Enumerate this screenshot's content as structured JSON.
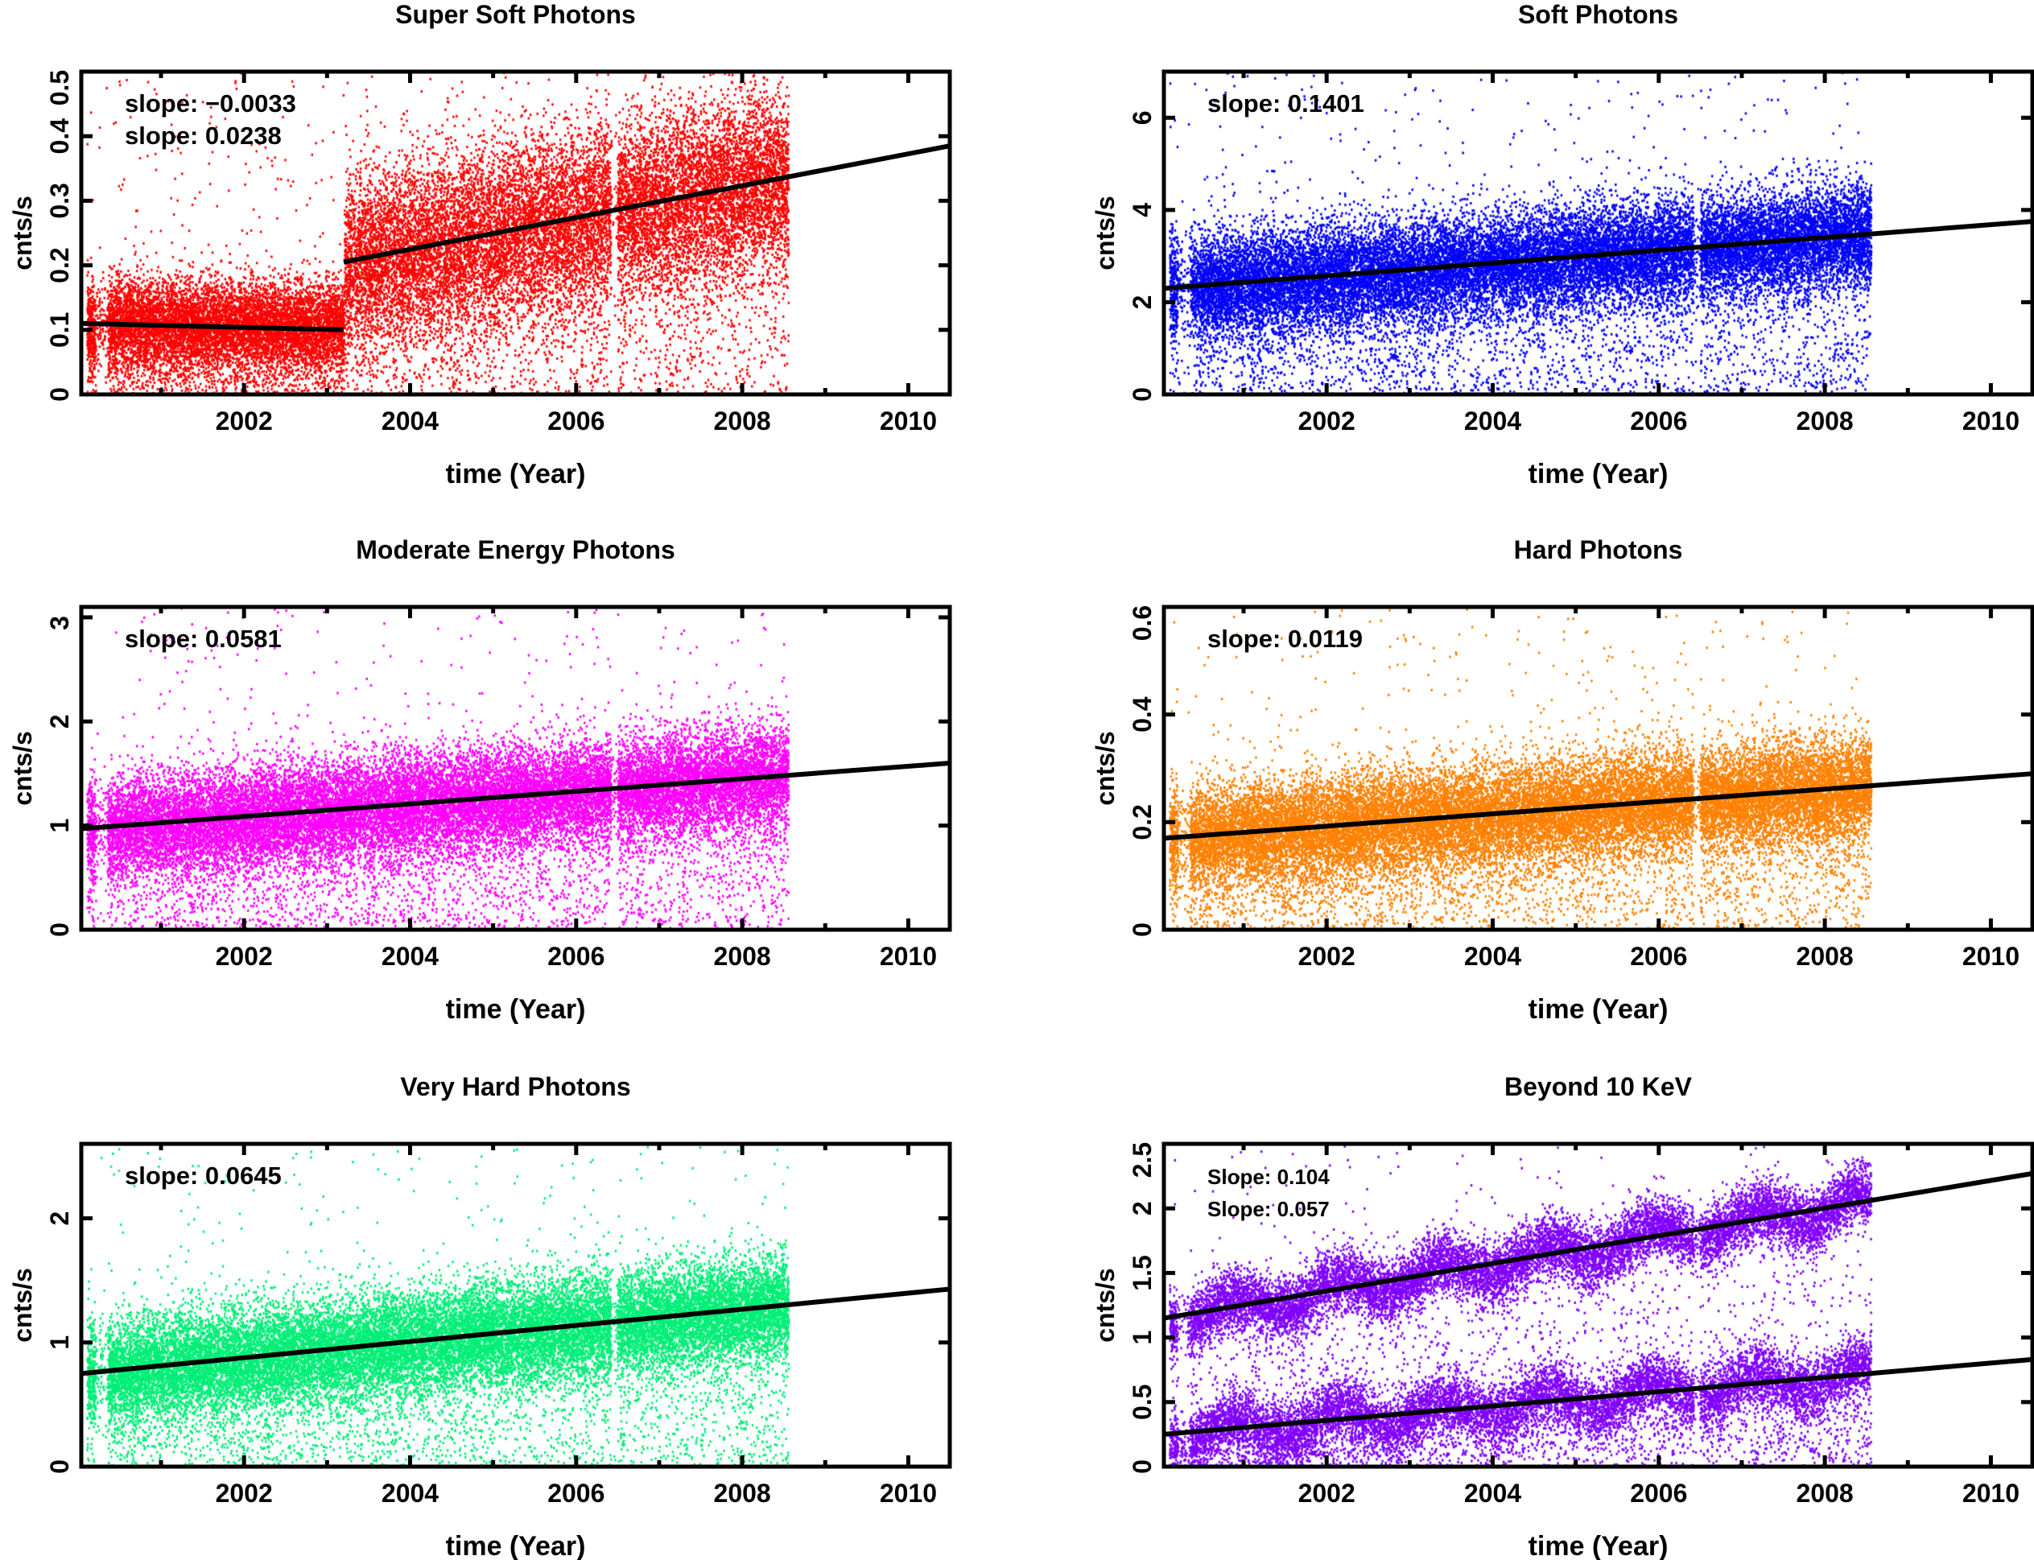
{
  "chart_data": [
    {
      "type": "scatter",
      "title": "Super Soft Photons",
      "xlabel": "time (Year)",
      "ylabel": "cnts/s",
      "xlim": [
        2000.04,
        2010.5
      ],
      "ylim": [
        0,
        0.5
      ],
      "xticks": [
        2002,
        2004,
        2006,
        2008,
        2010
      ],
      "yticks": [
        0,
        0.1,
        0.2,
        0.3,
        0.4,
        0.5
      ],
      "ytick_labels": [
        "0",
        "0.1",
        "0.2",
        "0.3",
        "0.4",
        "0.5"
      ],
      "point_color": "#ff0000",
      "data_x_range": [
        2000.1,
        2008.55
      ],
      "annotations": [
        "slope: −0.0033",
        "slope: 0.0238"
      ],
      "fit_lines": [
        {
          "x": [
            2000.04,
            2003.2
          ],
          "y": [
            0.11,
            0.1
          ]
        },
        {
          "x": [
            2003.2,
            2010.5
          ],
          "y": [
            0.205,
            0.385
          ]
        }
      ]
    },
    {
      "type": "scatter",
      "title": "Soft Photons",
      "xlabel": "time (Year)",
      "ylabel": "cnts/s",
      "xlim": [
        2000.04,
        2010.5
      ],
      "ylim": [
        0,
        7
      ],
      "xticks": [
        2002,
        2004,
        2006,
        2008,
        2010
      ],
      "yticks": [
        0,
        2,
        4,
        6
      ],
      "ytick_labels": [
        "0",
        "2",
        "4",
        "6"
      ],
      "point_color": "#0000ff",
      "data_x_range": [
        2000.1,
        2008.55
      ],
      "annotations": [
        "slope: 0.1401"
      ],
      "fit_lines": [
        {
          "x": [
            2000.04,
            2010.5
          ],
          "y": [
            2.3,
            3.75
          ]
        }
      ]
    },
    {
      "type": "scatter",
      "title": "Moderate Energy Photons",
      "xlabel": "time (Year)",
      "ylabel": "cnts/s",
      "xlim": [
        2000.04,
        2010.5
      ],
      "ylim": [
        0,
        3.1
      ],
      "xticks": [
        2002,
        2004,
        2006,
        2008,
        2010
      ],
      "yticks": [
        0,
        1,
        2,
        3
      ],
      "ytick_labels": [
        "0",
        "1",
        "2",
        "3"
      ],
      "point_color": "#ff00ff",
      "data_x_range": [
        2000.1,
        2008.55
      ],
      "annotations": [
        "slope: 0.0581"
      ],
      "fit_lines": [
        {
          "x": [
            2000.04,
            2010.5
          ],
          "y": [
            0.97,
            1.6
          ]
        }
      ]
    },
    {
      "type": "scatter",
      "title": "Hard Photons",
      "xlabel": "time (Year)",
      "ylabel": "cnts/s",
      "xlim": [
        2000.04,
        2010.5
      ],
      "ylim": [
        0,
        0.6
      ],
      "xticks": [
        2002,
        2004,
        2006,
        2008,
        2010
      ],
      "yticks": [
        0,
        0.2,
        0.4,
        0.6
      ],
      "ytick_labels": [
        "0",
        "0.2",
        "0.4",
        "0.6"
      ],
      "point_color": "#ff8000",
      "data_x_range": [
        2000.1,
        2008.55
      ],
      "annotations": [
        "slope: 0.0119"
      ],
      "fit_lines": [
        {
          "x": [
            2000.04,
            2010.5
          ],
          "y": [
            0.17,
            0.29
          ]
        }
      ]
    },
    {
      "type": "scatter",
      "title": "Very Hard  Photons",
      "xlabel": "time (Year)",
      "ylabel": "cnts/s",
      "xlim": [
        2000.04,
        2010.5
      ],
      "ylim": [
        0,
        2.6
      ],
      "xticks": [
        2002,
        2004,
        2006,
        2008,
        2010
      ],
      "yticks": [
        0,
        1,
        2
      ],
      "ytick_labels": [
        "0",
        "1",
        "2"
      ],
      "point_color": "#00ee77",
      "data_x_range": [
        2000.1,
        2008.55
      ],
      "annotations": [
        "slope: 0.0645"
      ],
      "fit_lines": [
        {
          "x": [
            2000.04,
            2010.5
          ],
          "y": [
            0.75,
            1.43
          ]
        }
      ]
    },
    {
      "type": "scatter",
      "title": "Beyond 10 KeV",
      "xlabel": "time (Year)",
      "ylabel": "cnts/s",
      "xlim": [
        2000.04,
        2010.5
      ],
      "ylim": [
        0,
        2.5
      ],
      "xticks": [
        2002,
        2004,
        2006,
        2008,
        2010
      ],
      "yticks": [
        0,
        0.5,
        1,
        1.5,
        2,
        2.5
      ],
      "ytick_labels": [
        "0",
        "0.5",
        "1",
        "1.5",
        "2",
        "2.5"
      ],
      "point_color": "#8000ff",
      "data_x_range": [
        2000.1,
        2008.55
      ],
      "annotations": [
        "Slope: 0.104",
        "Slope: 0.057"
      ],
      "fit_lines": [
        {
          "x": [
            2000.04,
            2010.5
          ],
          "y": [
            1.15,
            2.27
          ]
        },
        {
          "x": [
            2000.04,
            2010.5
          ],
          "y": [
            0.25,
            0.83
          ]
        }
      ]
    }
  ]
}
